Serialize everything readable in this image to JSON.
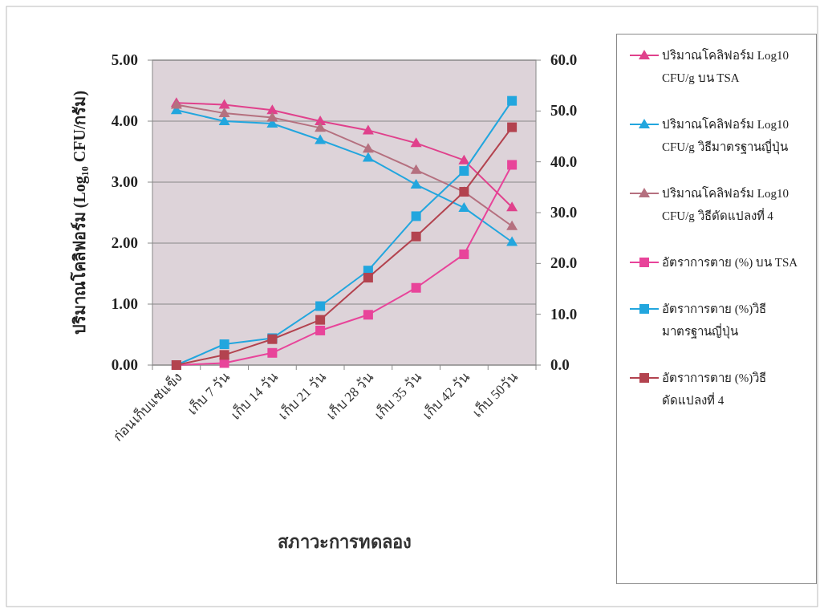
{
  "chart_data": {
    "type": "line",
    "xlabel": "สภาวะการทดลอง",
    "ylabel": "ปริมาณโคลิฟอร์ม (Log₁₀ CFU/กรัม)",
    "categories": [
      "ก่อนเก็บแช่แข็ง",
      "เก็บ 7 วัน",
      "เก็บ 14 วัน",
      "เก็บ 21 วัน",
      "เก็บ 28 วัน",
      "เก็บ 35 วัน",
      "เก็บ 42 วัน",
      "เก็บ 50วัน"
    ],
    "series": [
      {
        "name": "ปริมาณโคลิฟอร์ม Log10 CFU/g บน TSA",
        "color": "#e0418c",
        "marker": "triangle",
        "values": [
          4.3,
          4.27,
          4.18,
          4.0,
          3.85,
          3.64,
          3.36,
          2.59
        ]
      },
      {
        "name": "ปริมาณโคลิฟอร์ม Log10 CFU/g วิธีมาตรฐานญี่ปุ่น",
        "color": "#22a6de",
        "marker": "triangle",
        "values": [
          4.18,
          4.0,
          3.96,
          3.69,
          3.4,
          2.96,
          2.58,
          2.02
        ]
      },
      {
        "name": "ปริมาณโคลิฟอร์ม Log10 CFU/g วิธีดัดแปลงที่ 4",
        "color": "#b5707f",
        "marker": "triangle",
        "values": [
          4.27,
          4.13,
          4.06,
          3.89,
          3.55,
          3.2,
          2.84,
          2.28
        ]
      },
      {
        "name": "อัตราการตาย (%) บน TSA",
        "color": "#e8449a",
        "marker": "square",
        "axis": "y2",
        "values": [
          0.0,
          0.4,
          2.4,
          6.8,
          9.9,
          15.2,
          21.8,
          39.4
        ]
      },
      {
        "name": "อัตราการตาย (%)วิธีมาตรฐานญี่ปุ่น",
        "color": "#22a6de",
        "marker": "square",
        "axis": "y2",
        "values": [
          0.0,
          4.1,
          5.3,
          11.6,
          18.6,
          29.3,
          38.2,
          52.0
        ]
      },
      {
        "name": "อัตราการตาย (%)วิธีดัดแปลงที่ 4",
        "color": "#b3434f",
        "marker": "square",
        "axis": "y2",
        "values": [
          0.0,
          2.0,
          5.1,
          8.9,
          17.2,
          25.3,
          34.1,
          46.8
        ]
      }
    ],
    "ylim": [
      0,
      5
    ],
    "yticks": [
      {
        "value": 0,
        "label": "0.00"
      },
      {
        "value": 1,
        "label": "1.00"
      },
      {
        "value": 2,
        "label": "2.00"
      },
      {
        "value": 3,
        "label": "3.00"
      },
      {
        "value": 4,
        "label": "4.00"
      },
      {
        "value": 5,
        "label": "5.00"
      }
    ],
    "y2lim": [
      0,
      60
    ],
    "y2ticks": [
      {
        "value": 0,
        "label": "0.0"
      },
      {
        "value": 10,
        "label": "10.0"
      },
      {
        "value": 20,
        "label": "20.0"
      },
      {
        "value": 30,
        "label": "30.0"
      },
      {
        "value": 40,
        "label": "40.0"
      },
      {
        "value": 50,
        "label": "50.0"
      },
      {
        "value": 60,
        "label": "60.0"
      }
    ],
    "grid": "y",
    "legend": "right",
    "line_style": "solid"
  }
}
